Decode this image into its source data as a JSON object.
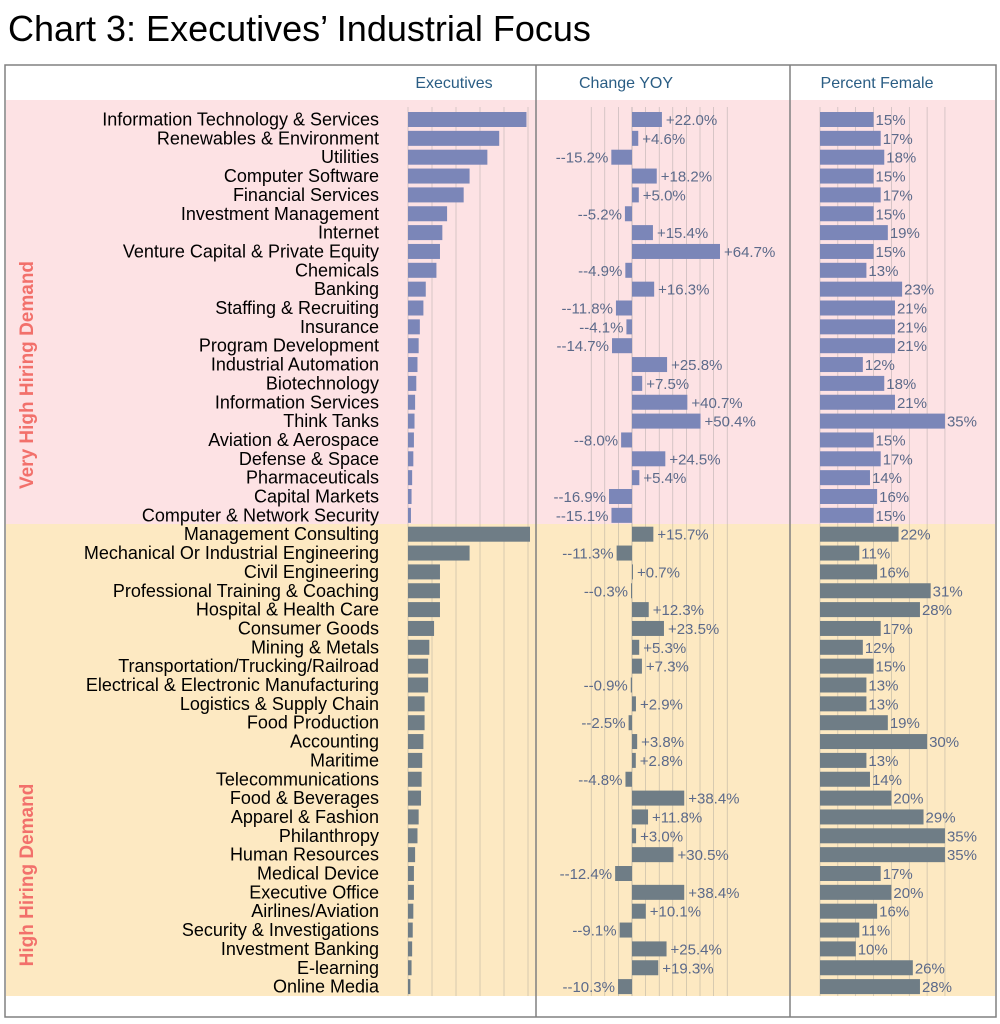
{
  "title": "Chart 3: Executives’ Industrial Focus",
  "colors": {
    "very_high_band": "#fde2e4",
    "high_band": "#fde9c2",
    "very_high_bar": "#7b86b8",
    "high_bar": "#6f7d86",
    "group_label": "#f2706b",
    "panel_header": "#2a5d84",
    "value_text": "#5c6a8a",
    "gridline": "#8a8a8a",
    "frame": "#808080"
  },
  "chart_data": {
    "type": "bar",
    "orientation": "horizontal",
    "panels": [
      {
        "key": "executives",
        "title": "Executives",
        "tick_labels": false
      },
      {
        "key": "change_yoy",
        "title": "Change YOY",
        "unit": "%",
        "center_zero": true
      },
      {
        "key": "percent_female",
        "title": "Percent Female",
        "unit": "%"
      }
    ],
    "groups": [
      {
        "name": "Very High Hiring Demand",
        "rows": [
          {
            "label": "Information Technology & Services",
            "executives": 100,
            "change_yoy": 22.0,
            "change_text": "+22.0%",
            "female": 15,
            "female_text": "15%"
          },
          {
            "label": "Renewables & Environment",
            "executives": 77,
            "change_yoy": 4.6,
            "change_text": "+4.6%",
            "female": 17,
            "female_text": "17%"
          },
          {
            "label": "Utilities",
            "executives": 67,
            "change_yoy": -15.2,
            "change_text": "--15.2%",
            "female": 18,
            "female_text": "18%"
          },
          {
            "label": "Computer Software",
            "executives": 52,
            "change_yoy": 18.2,
            "change_text": "+18.2%",
            "female": 15,
            "female_text": "15%"
          },
          {
            "label": "Financial Services",
            "executives": 47,
            "change_yoy": 5.0,
            "change_text": "+5.0%",
            "female": 17,
            "female_text": "17%"
          },
          {
            "label": "Investment Management",
            "executives": 33,
            "change_yoy": -5.2,
            "change_text": "--5.2%",
            "female": 15,
            "female_text": "15%"
          },
          {
            "label": "Internet",
            "executives": 29,
            "change_yoy": 15.4,
            "change_text": "+15.4%",
            "female": 19,
            "female_text": "19%"
          },
          {
            "label": "Venture Capital & Private Equity",
            "executives": 27,
            "change_yoy": 64.7,
            "change_text": "+64.7%",
            "female": 15,
            "female_text": "15%"
          },
          {
            "label": "Chemicals",
            "executives": 24,
            "change_yoy": -4.9,
            "change_text": "--4.9%",
            "female": 13,
            "female_text": "13%"
          },
          {
            "label": "Banking",
            "executives": 15,
            "change_yoy": 16.3,
            "change_text": "+16.3%",
            "female": 23,
            "female_text": "23%"
          },
          {
            "label": "Staffing & Recruiting",
            "executives": 13,
            "change_yoy": -11.8,
            "change_text": "--11.8%",
            "female": 21,
            "female_text": "21%"
          },
          {
            "label": "Insurance",
            "executives": 10,
            "change_yoy": -4.1,
            "change_text": "--4.1%",
            "female": 21,
            "female_text": "21%"
          },
          {
            "label": "Program Development",
            "executives": 9,
            "change_yoy": -14.7,
            "change_text": "--14.7%",
            "female": 21,
            "female_text": "21%"
          },
          {
            "label": "Industrial Automation",
            "executives": 8,
            "change_yoy": 25.8,
            "change_text": "+25.8%",
            "female": 12,
            "female_text": "12%"
          },
          {
            "label": "Biotechnology",
            "executives": 7,
            "change_yoy": 7.5,
            "change_text": "+7.5%",
            "female": 18,
            "female_text": "18%"
          },
          {
            "label": "Information Services",
            "executives": 6,
            "change_yoy": 40.7,
            "change_text": "+40.7%",
            "female": 21,
            "female_text": "21%"
          },
          {
            "label": "Think Tanks",
            "executives": 5.5,
            "change_yoy": 50.4,
            "change_text": "+50.4%",
            "female": 35,
            "female_text": "35%"
          },
          {
            "label": "Aviation & Aerospace",
            "executives": 5,
            "change_yoy": -8.0,
            "change_text": "--8.0%",
            "female": 15,
            "female_text": "15%"
          },
          {
            "label": "Defense & Space",
            "executives": 4.5,
            "change_yoy": 24.5,
            "change_text": "+24.5%",
            "female": 17,
            "female_text": "17%"
          },
          {
            "label": "Pharmaceuticals",
            "executives": 3.5,
            "change_yoy": 5.4,
            "change_text": "+5.4%",
            "female": 14,
            "female_text": "14%"
          },
          {
            "label": "Capital Markets",
            "executives": 3,
            "change_yoy": -16.9,
            "change_text": "--16.9%",
            "female": 16,
            "female_text": "16%"
          },
          {
            "label": "Computer & Network Security",
            "executives": 2.5,
            "change_yoy": -15.1,
            "change_text": "--15.1%",
            "female": 15,
            "female_text": "15%"
          }
        ]
      },
      {
        "name": "High Hiring Demand",
        "rows": [
          {
            "label": "Management Consulting",
            "executives": 103,
            "change_yoy": 15.7,
            "change_text": "+15.7%",
            "female": 22,
            "female_text": "22%"
          },
          {
            "label": "Mechanical Or Industrial Engineering",
            "executives": 52,
            "change_yoy": -11.3,
            "change_text": "--11.3%",
            "female": 11,
            "female_text": "11%"
          },
          {
            "label": "Civil Engineering",
            "executives": 27,
            "change_yoy": 0.7,
            "change_text": "+0.7%",
            "female": 16,
            "female_text": "16%"
          },
          {
            "label": "Professional Training & Coaching",
            "executives": 27,
            "change_yoy": -0.3,
            "change_text": "--0.3%",
            "female": 31,
            "female_text": "31%"
          },
          {
            "label": "Hospital & Health Care",
            "executives": 27,
            "change_yoy": 12.3,
            "change_text": "+12.3%",
            "female": 28,
            "female_text": "28%"
          },
          {
            "label": "Consumer Goods",
            "executives": 22,
            "change_yoy": 23.5,
            "change_text": "+23.5%",
            "female": 17,
            "female_text": "17%"
          },
          {
            "label": "Mining & Metals",
            "executives": 18,
            "change_yoy": 5.3,
            "change_text": "+5.3%",
            "female": 12,
            "female_text": "12%"
          },
          {
            "label": "Transportation/Trucking/Railroad",
            "executives": 17,
            "change_yoy": 7.3,
            "change_text": "+7.3%",
            "female": 15,
            "female_text": "15%"
          },
          {
            "label": "Electrical & Electronic Manufacturing",
            "executives": 17,
            "change_yoy": -0.9,
            "change_text": "--0.9%",
            "female": 13,
            "female_text": "13%"
          },
          {
            "label": "Logistics & Supply Chain",
            "executives": 14,
            "change_yoy": 2.9,
            "change_text": "+2.9%",
            "female": 13,
            "female_text": "13%"
          },
          {
            "label": "Food Production",
            "executives": 14,
            "change_yoy": -2.5,
            "change_text": "--2.5%",
            "female": 19,
            "female_text": "19%"
          },
          {
            "label": "Accounting",
            "executives": 13,
            "change_yoy": 3.8,
            "change_text": "+3.8%",
            "female": 30,
            "female_text": "30%"
          },
          {
            "label": "Maritime",
            "executives": 12,
            "change_yoy": 2.8,
            "change_text": "+2.8%",
            "female": 13,
            "female_text": "13%"
          },
          {
            "label": "Telecommunications",
            "executives": 11.5,
            "change_yoy": -4.8,
            "change_text": "--4.8%",
            "female": 14,
            "female_text": "14%"
          },
          {
            "label": "Food & Beverages",
            "executives": 11,
            "change_yoy": 38.4,
            "change_text": "+38.4%",
            "female": 20,
            "female_text": "20%"
          },
          {
            "label": "Apparel & Fashion",
            "executives": 9,
            "change_yoy": 11.8,
            "change_text": "+11.8%",
            "female": 29,
            "female_text": "29%"
          },
          {
            "label": "Philanthropy",
            "executives": 8,
            "change_yoy": 3.0,
            "change_text": "+3.0%",
            "female": 35,
            "female_text": "35%"
          },
          {
            "label": "Human Resources",
            "executives": 6,
            "change_yoy": 30.5,
            "change_text": "+30.5%",
            "female": 35,
            "female_text": "35%"
          },
          {
            "label": "Medical Device",
            "executives": 5,
            "change_yoy": -12.4,
            "change_text": "--12.4%",
            "female": 17,
            "female_text": "17%"
          },
          {
            "label": "Executive Office",
            "executives": 5,
            "change_yoy": 38.4,
            "change_text": "+38.4%",
            "female": 20,
            "female_text": "20%"
          },
          {
            "label": "Airlines/Aviation",
            "executives": 4.5,
            "change_yoy": 10.1,
            "change_text": "+10.1%",
            "female": 16,
            "female_text": "16%"
          },
          {
            "label": "Security & Investigations",
            "executives": 4,
            "change_yoy": -9.1,
            "change_text": "--9.1%",
            "female": 11,
            "female_text": "11%"
          },
          {
            "label": "Investment Banking",
            "executives": 3.5,
            "change_yoy": 25.4,
            "change_text": "+25.4%",
            "female": 10,
            "female_text": "10%"
          },
          {
            "label": "E-learning",
            "executives": 3,
            "change_yoy": 19.3,
            "change_text": "+19.3%",
            "female": 26,
            "female_text": "26%"
          },
          {
            "label": "Online Media",
            "executives": 2,
            "change_yoy": -10.3,
            "change_text": "--10.3%",
            "female": 28,
            "female_text": "28%"
          }
        ]
      }
    ],
    "executives_max": 103,
    "change_yoy_range": [
      -20,
      70
    ],
    "percent_female_range": [
      0,
      35
    ],
    "grid": true,
    "legend": "none"
  }
}
